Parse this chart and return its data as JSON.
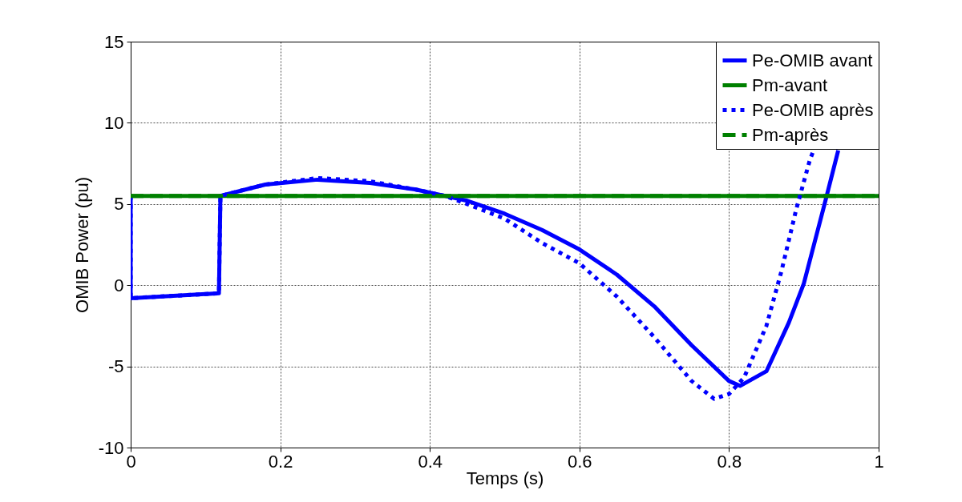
{
  "chart_data": {
    "type": "line",
    "xlabel": "Temps (s)",
    "ylabel": "OMIB Power (pu)",
    "xlim": [
      0,
      1
    ],
    "xticks": [
      0,
      0.2,
      0.4,
      0.6,
      0.8,
      1
    ],
    "ylim": [
      -10,
      15
    ],
    "yticks": [
      -10,
      -5,
      0,
      5,
      10,
      15
    ],
    "grid": true,
    "legend": "top right",
    "series": [
      {
        "name": "Pe-OMIB avant",
        "color": "#0000ff",
        "line_style": "solid",
        "x": [
          0,
          0,
          0.118,
          0.12,
          0.18,
          0.25,
          0.32,
          0.38,
          0.42,
          0.45,
          0.5,
          0.55,
          0.6,
          0.65,
          0.7,
          0.75,
          0.8,
          0.815,
          0.85,
          0.88,
          0.9,
          0.93,
          0.946
        ],
        "values": [
          5.5,
          -0.8,
          -0.5,
          5.5,
          6.2,
          6.5,
          6.3,
          5.9,
          5.5,
          5.2,
          4.4,
          3.4,
          2.2,
          0.65,
          -1.3,
          -3.7,
          -5.9,
          -6.2,
          -5.3,
          -2.3,
          0.1,
          5.4,
          8.3
        ]
      },
      {
        "name": "Pm-avant",
        "color": "#008000",
        "line_style": "solid",
        "x": [
          0,
          1
        ],
        "values": [
          5.5,
          5.5
        ]
      },
      {
        "name": "Pe-OMIB après",
        "color": "#0000ff",
        "line_style": "dotted",
        "x": [
          0,
          0,
          0.118,
          0.12,
          0.18,
          0.25,
          0.32,
          0.38,
          0.42,
          0.45,
          0.5,
          0.53,
          0.55,
          0.6,
          0.65,
          0.7,
          0.75,
          0.78,
          0.8,
          0.82,
          0.85,
          0.87,
          0.89,
          0.908,
          0.913
        ],
        "values": [
          5.5,
          -0.8,
          -0.5,
          5.5,
          6.2,
          6.6,
          6.4,
          5.9,
          5.5,
          5.0,
          4.1,
          3.2,
          2.6,
          1.35,
          -0.7,
          -3.2,
          -5.9,
          -7.0,
          -6.7,
          -5.7,
          -2.5,
          0.85,
          4.7,
          7.7,
          8.3
        ]
      },
      {
        "name": "Pm-après",
        "color": "#008000",
        "line_style": "dashed",
        "x": [
          0,
          1
        ],
        "values": [
          5.5,
          5.5
        ]
      }
    ]
  }
}
